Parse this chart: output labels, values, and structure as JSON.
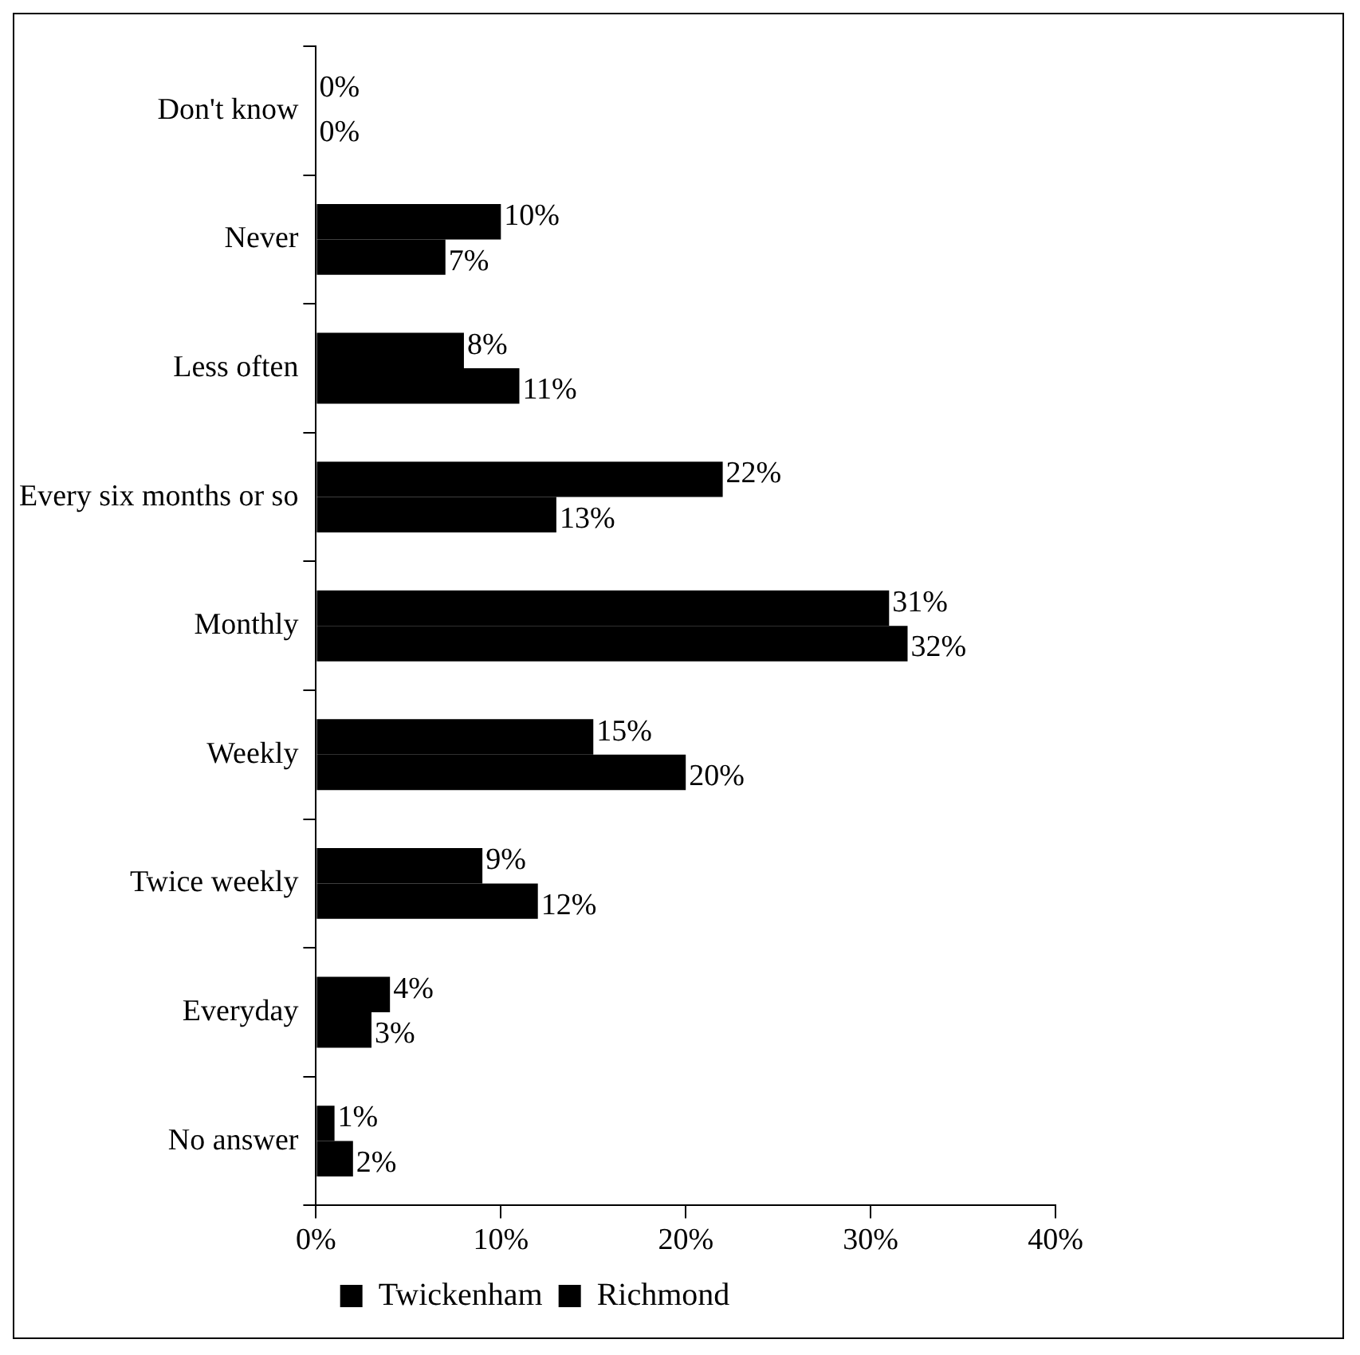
{
  "chart_data": {
    "type": "bar",
    "orientation": "horizontal",
    "categories": [
      "Don't know",
      "Never",
      "Less often",
      "Every six months or so",
      "Monthly",
      "Weekly",
      "Twice weekly",
      "Everyday",
      "No answer"
    ],
    "series": [
      {
        "name": "Twickenham",
        "color": "#000000",
        "values": [
          0,
          10,
          8,
          22,
          31,
          15,
          9,
          4,
          1
        ],
        "value_labels": [
          "0%",
          "10%",
          "8%",
          "22%",
          "31%",
          "15%",
          "9%",
          "4%",
          "1%"
        ]
      },
      {
        "name": "Richmond",
        "color": "#000000",
        "values": [
          0,
          7,
          11,
          13,
          32,
          20,
          12,
          3,
          2
        ],
        "value_labels": [
          "0%",
          "7%",
          "11%",
          "13%",
          "32%",
          "20%",
          "12%",
          "3%",
          "2%"
        ]
      }
    ],
    "xlim": [
      0,
      40
    ],
    "xticks": [
      {
        "value": 0,
        "label": "0%"
      },
      {
        "value": 10,
        "label": "10%"
      },
      {
        "value": 20,
        "label": "20%"
      },
      {
        "value": 30,
        "label": "30%"
      },
      {
        "value": 40,
        "label": "40%"
      }
    ],
    "grid": false,
    "legend": "bottom"
  }
}
